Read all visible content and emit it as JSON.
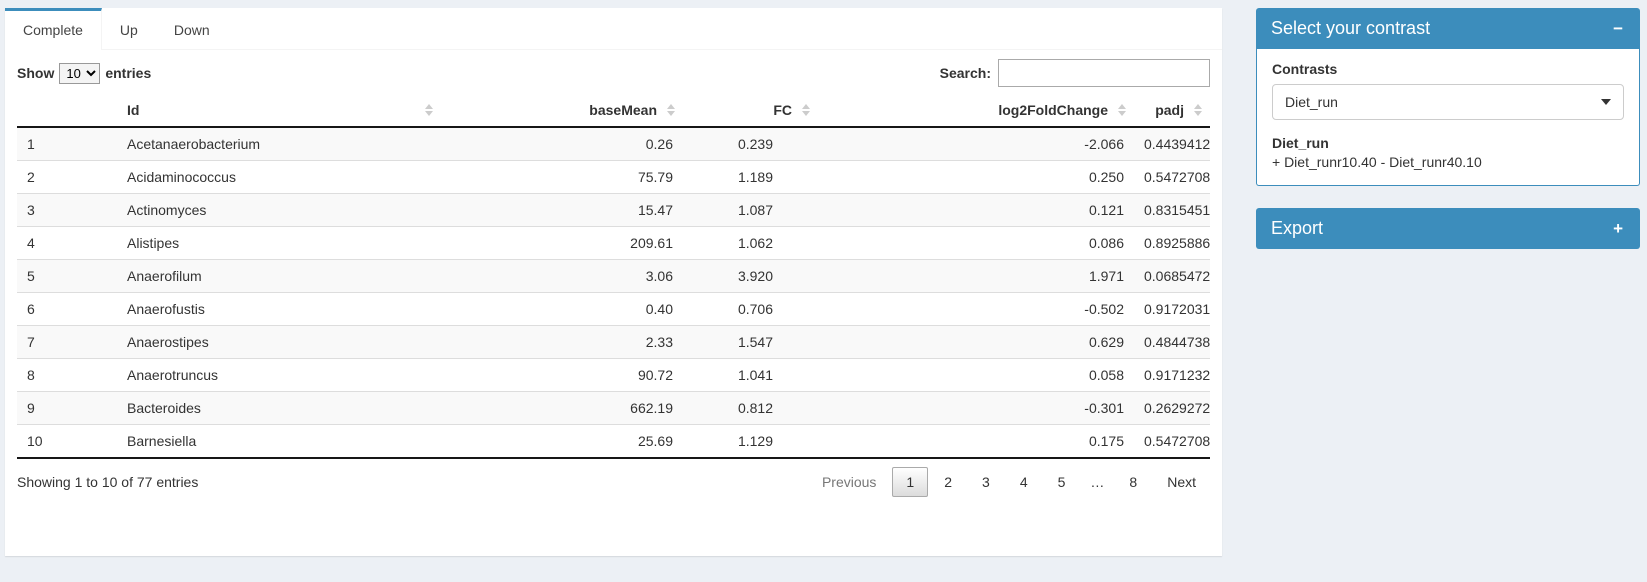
{
  "colors": {
    "accent": "#3c8dbc",
    "page_bg": "#ecf0f5"
  },
  "tabs": [
    {
      "label": "Complete",
      "active": true
    },
    {
      "label": "Up",
      "active": false
    },
    {
      "label": "Down",
      "active": false
    }
  ],
  "length_control": {
    "prefix": "Show",
    "selected": "10",
    "suffix": "entries"
  },
  "search": {
    "label": "Search:",
    "value": ""
  },
  "table": {
    "columns": [
      {
        "key": "num",
        "label": ""
      },
      {
        "key": "id",
        "label": "Id"
      },
      {
        "key": "baseMean",
        "label": "baseMean"
      },
      {
        "key": "fc",
        "label": "FC"
      },
      {
        "key": "log2fc",
        "label": "log2FoldChange"
      },
      {
        "key": "padj",
        "label": "padj"
      }
    ],
    "rows": [
      {
        "num": "1",
        "id": "Acetanaerobacterium",
        "baseMean": "0.26",
        "fc": "0.239",
        "log2fc": "-2.066",
        "padj": "0.44394125"
      },
      {
        "num": "2",
        "id": "Acidaminococcus",
        "baseMean": "75.79",
        "fc": "1.189",
        "log2fc": "0.250",
        "padj": "0.54727084"
      },
      {
        "num": "3",
        "id": "Actinomyces",
        "baseMean": "15.47",
        "fc": "1.087",
        "log2fc": "0.121",
        "padj": "0.83154513"
      },
      {
        "num": "4",
        "id": "Alistipes",
        "baseMean": "209.61",
        "fc": "1.062",
        "log2fc": "0.086",
        "padj": "0.89258869"
      },
      {
        "num": "5",
        "id": "Anaerofilum",
        "baseMean": "3.06",
        "fc": "3.920",
        "log2fc": "1.971",
        "padj": "0.06854729"
      },
      {
        "num": "6",
        "id": "Anaerofustis",
        "baseMean": "0.40",
        "fc": "0.706",
        "log2fc": "-0.502",
        "padj": "0.91720312"
      },
      {
        "num": "7",
        "id": "Anaerostipes",
        "baseMean": "2.33",
        "fc": "1.547",
        "log2fc": "0.629",
        "padj": "0.48447385"
      },
      {
        "num": "8",
        "id": "Anaerotruncus",
        "baseMean": "90.72",
        "fc": "1.041",
        "log2fc": "0.058",
        "padj": "0.91712322"
      },
      {
        "num": "9",
        "id": "Bacteroides",
        "baseMean": "662.19",
        "fc": "0.812",
        "log2fc": "-0.301",
        "padj": "0.26292721"
      },
      {
        "num": "10",
        "id": "Barnesiella",
        "baseMean": "25.69",
        "fc": "1.129",
        "log2fc": "0.175",
        "padj": "0.54727084"
      }
    ]
  },
  "footer": {
    "info": "Showing 1 to 10 of 77 entries",
    "pagination": [
      {
        "label": "Previous",
        "state": "disabled"
      },
      {
        "label": "1",
        "state": "current"
      },
      {
        "label": "2",
        "state": "normal"
      },
      {
        "label": "3",
        "state": "normal"
      },
      {
        "label": "4",
        "state": "normal"
      },
      {
        "label": "5",
        "state": "normal"
      },
      {
        "label": "…",
        "state": "ellipsis"
      },
      {
        "label": "8",
        "state": "normal"
      },
      {
        "label": "Next",
        "state": "normal"
      }
    ]
  },
  "contrast_panel": {
    "title": "Select your contrast",
    "collapse_icon": "−",
    "label": "Contrasts",
    "selected": "Diet_run",
    "detail_title": "Diet_run",
    "detail_text": "+ Diet_runr10.40 - Diet_runr40.10"
  },
  "export_panel": {
    "title": "Export",
    "collapse_icon": "+"
  }
}
